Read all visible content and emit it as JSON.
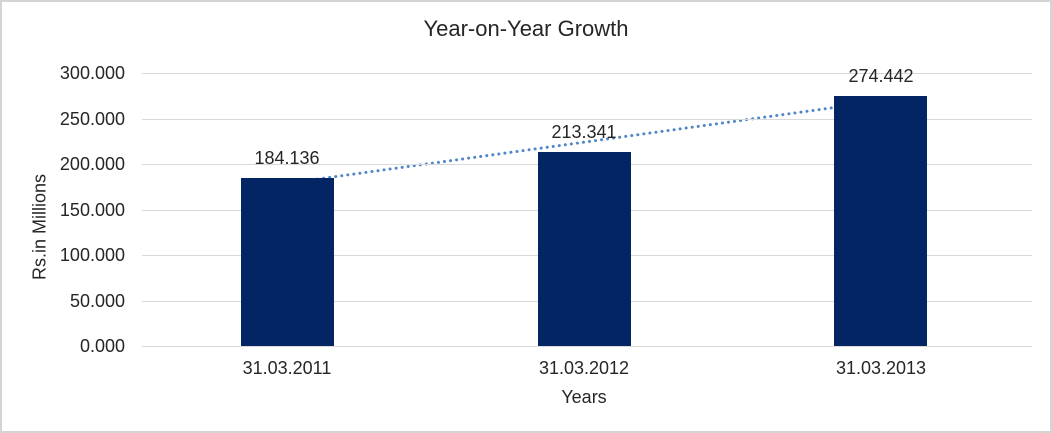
{
  "chart_data": {
    "type": "bar",
    "title": "Year-on-Year Growth",
    "xlabel": "Years",
    "ylabel": "Rs.in Millions",
    "categories": [
      "31.03.2011",
      "31.03.2012",
      "31.03.2013"
    ],
    "values": [
      184.136,
      213.341,
      274.442
    ],
    "data_labels": [
      "184.136",
      "213.341",
      "274.442"
    ],
    "ylim": [
      0,
      300
    ],
    "yticks": [
      {
        "value": 0,
        "label": "0.000"
      },
      {
        "value": 50,
        "label": "50.000"
      },
      {
        "value": 100,
        "label": "100.000"
      },
      {
        "value": 150,
        "label": "150.000"
      },
      {
        "value": 200,
        "label": "200.000"
      },
      {
        "value": 250,
        "label": "250.000"
      },
      {
        "value": 300,
        "label": "300.000"
      }
    ],
    "grid": true,
    "legend_position": "none",
    "trendline": {
      "type": "linear",
      "style": "dotted"
    },
    "colors": {
      "bar": "#032564",
      "trendline": "#4f86c8",
      "gridline": "#d9d9d9",
      "text": "#262626",
      "background": "#ffffff",
      "border": "#d4d4d4"
    }
  }
}
